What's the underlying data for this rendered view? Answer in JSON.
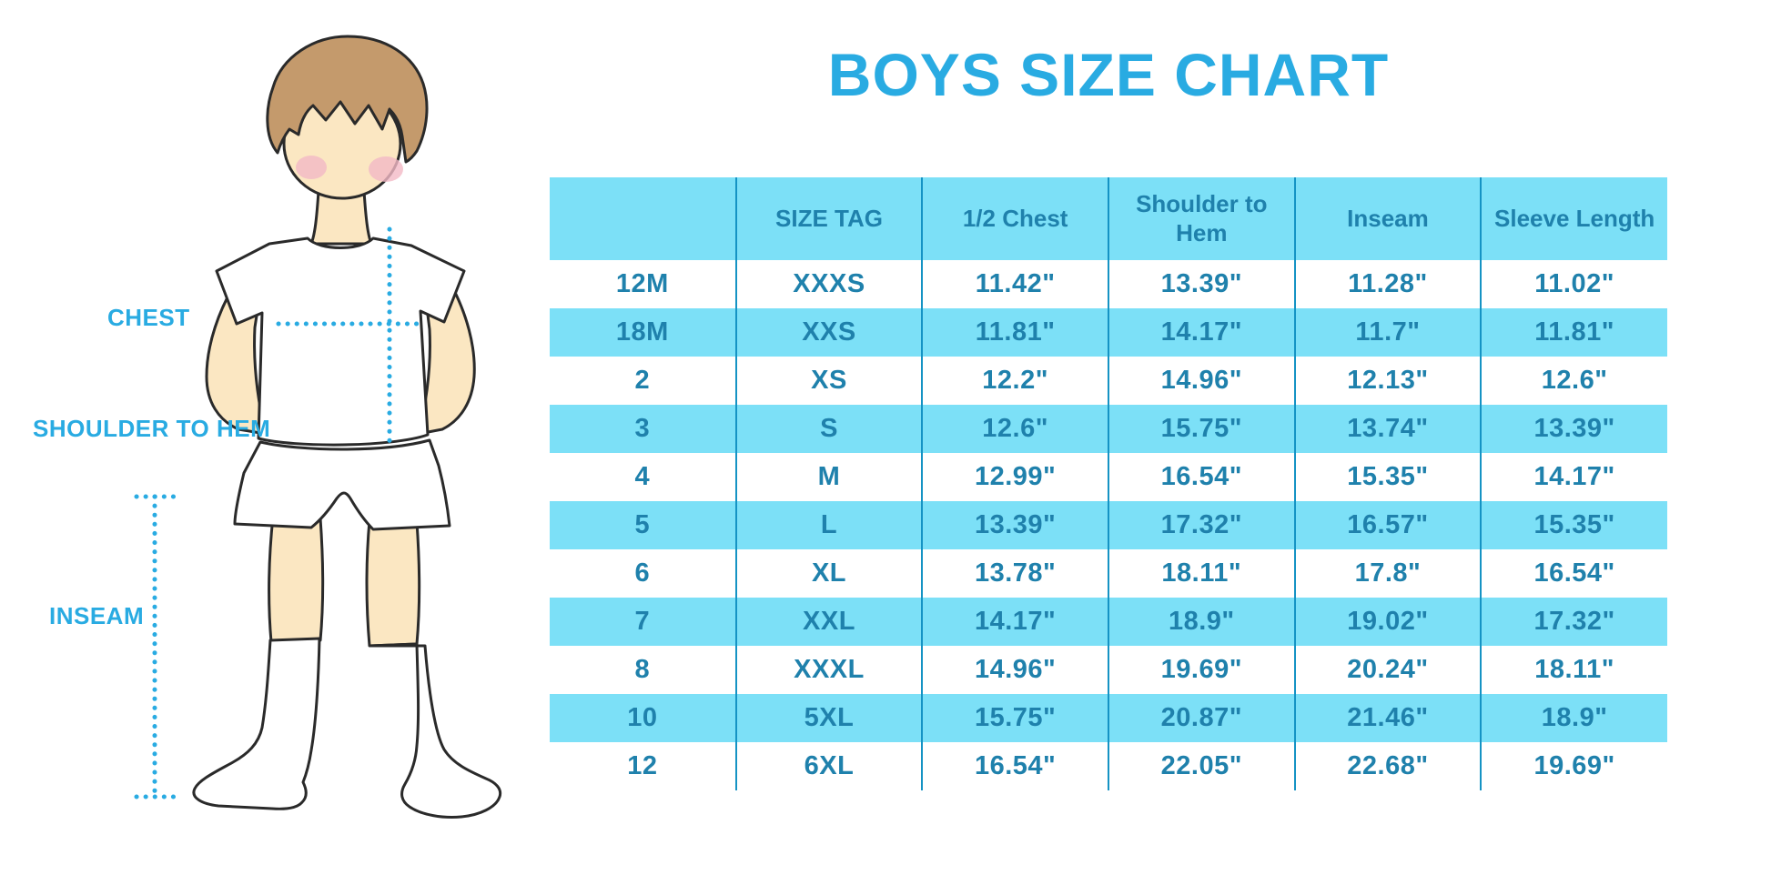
{
  "page": {
    "title": "BOYS SIZE CHART",
    "background": "#FFFFFF"
  },
  "colors": {
    "accent_blue": "#29ABE2",
    "header_bg": "#7CE0F7",
    "stripe_bg": "#7CE0F7",
    "table_text": "#1F81AC",
    "divider": "#1593C4",
    "outline": "#2A2A2A",
    "skin": "#FBE7C2",
    "hair": "#C49A6C",
    "blush": "#F3B9C5"
  },
  "diagram": {
    "labels": {
      "chest": "CHEST",
      "shoulder_to_hem": "SHOULDER TO HEM",
      "inseam": "INSEAM"
    }
  },
  "chart_data": {
    "type": "table",
    "title": "BOYS SIZE CHART",
    "columns": [
      "",
      "SIZE TAG",
      "1/2 Chest",
      "Shoulder to Hem",
      "Inseam",
      "Sleeve Length"
    ],
    "rows": [
      [
        "12M",
        "XXXS",
        "11.42\"",
        "13.39\"",
        "11.28\"",
        "11.02\""
      ],
      [
        "18M",
        "XXS",
        "11.81\"",
        "14.17\"",
        "11.7\"",
        "11.81\""
      ],
      [
        "2",
        "XS",
        "12.2\"",
        "14.96\"",
        "12.13\"",
        "12.6\""
      ],
      [
        "3",
        "S",
        "12.6\"",
        "15.75\"",
        "13.74\"",
        "13.39\""
      ],
      [
        "4",
        "M",
        "12.99\"",
        "16.54\"",
        "15.35\"",
        "14.17\""
      ],
      [
        "5",
        "L",
        "13.39\"",
        "17.32\"",
        "16.57\"",
        "15.35\""
      ],
      [
        "6",
        "XL",
        "13.78\"",
        "18.11\"",
        "17.8\"",
        "16.54\""
      ],
      [
        "7",
        "XXL",
        "14.17\"",
        "18.9\"",
        "19.02\"",
        "17.32\""
      ],
      [
        "8",
        "XXXL",
        "14.96\"",
        "19.69\"",
        "20.24\"",
        "18.11\""
      ],
      [
        "10",
        "5XL",
        "15.75\"",
        "20.87\"",
        "21.46\"",
        "18.9\""
      ],
      [
        "12",
        "6XL",
        "16.54\"",
        "22.05\"",
        "22.68\"",
        "19.69\""
      ]
    ],
    "layout": {
      "striped": "alternate rows highlighted starting with 18M",
      "outer_border": false,
      "grid": "vertical dividers only"
    }
  }
}
